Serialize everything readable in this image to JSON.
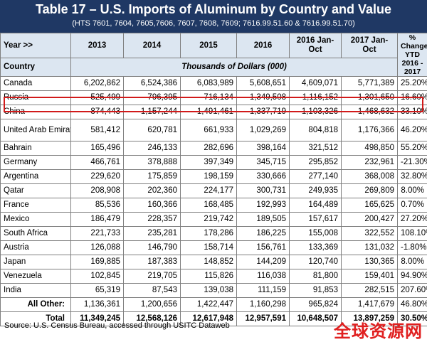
{
  "title": "Table 17 – U.S. Imports of Aluminum by Country and Value",
  "subtitle": "(HTS 7601, 7604, 7605,7606, 7607, 7608, 7609; 7616.99.51.60 & 7616.99.51.70)",
  "headers": {
    "year_label": "Year >>",
    "y2013": "2013",
    "y2014": "2014",
    "y2015": "2015",
    "y2016": "2016",
    "ytd2016": "2016 Jan-Oct",
    "ytd2017": "2017 Jan-Oct",
    "pct": "% Change YTD 2016 - 2017"
  },
  "subheader": {
    "country": "Country",
    "units": "Thousands of Dollars (000)"
  },
  "rows": [
    {
      "country": "Canada",
      "y2013": "6,202,862",
      "y2014": "6,524,386",
      "y2015": "6,083,989",
      "y2016": "5,608,651",
      "ytd2016": "4,609,071",
      "ytd2017": "5,771,389",
      "pct": "25.20%"
    },
    {
      "country": "Russia",
      "y2013": "525,499",
      "y2014": "796,395",
      "y2015": "716,134",
      "y2016": "1,349,508",
      "ytd2016": "1,116,152",
      "ytd2017": "1,301,650",
      "pct": "16.60%"
    },
    {
      "country": "China",
      "y2013": "874,443",
      "y2014": "1,157,244",
      "y2015": "1,491,461",
      "y2016": "1,337,719",
      "ytd2016": "1,103,326",
      "ytd2017": "1,468,632",
      "pct": "33.10%"
    },
    {
      "country": "United Arab Emirates",
      "y2013": "581,412",
      "y2014": "620,781",
      "y2015": "661,933",
      "y2016": "1,029,269",
      "ytd2016": "804,818",
      "ytd2017": "1,176,366",
      "pct": "46.20%"
    },
    {
      "country": "Bahrain",
      "y2013": "165,496",
      "y2014": "246,133",
      "y2015": "282,696",
      "y2016": "398,164",
      "ytd2016": "321,512",
      "ytd2017": "498,850",
      "pct": "55.20%"
    },
    {
      "country": "Germany",
      "y2013": "466,761",
      "y2014": "378,888",
      "y2015": "397,349",
      "y2016": "345,715",
      "ytd2016": "295,852",
      "ytd2017": "232,961",
      "pct": "-21.30%"
    },
    {
      "country": "Argentina",
      "y2013": "229,620",
      "y2014": "175,859",
      "y2015": "198,159",
      "y2016": "330,666",
      "ytd2016": "277,140",
      "ytd2017": "368,008",
      "pct": "32.80%"
    },
    {
      "country": "Qatar",
      "y2013": "208,908",
      "y2014": "202,360",
      "y2015": "224,177",
      "y2016": "300,731",
      "ytd2016": "249,935",
      "ytd2017": "269,809",
      "pct": "8.00%"
    },
    {
      "country": "France",
      "y2013": "85,536",
      "y2014": "160,366",
      "y2015": "168,485",
      "y2016": "192,993",
      "ytd2016": "164,489",
      "ytd2017": "165,625",
      "pct": "0.70%"
    },
    {
      "country": "Mexico",
      "y2013": "186,479",
      "y2014": "228,357",
      "y2015": "219,742",
      "y2016": "189,505",
      "ytd2016": "157,617",
      "ytd2017": "200,427",
      "pct": "27.20%"
    },
    {
      "country": "South Africa",
      "y2013": "221,733",
      "y2014": "235,281",
      "y2015": "178,286",
      "y2016": "186,225",
      "ytd2016": "155,008",
      "ytd2017": "322,552",
      "pct": "108.10%"
    },
    {
      "country": "Austria",
      "y2013": "126,088",
      "y2014": "146,790",
      "y2015": "158,714",
      "y2016": "156,761",
      "ytd2016": "133,369",
      "ytd2017": "131,032",
      "pct": "-1.80%"
    },
    {
      "country": "Japan",
      "y2013": "169,885",
      "y2014": "187,383",
      "y2015": "148,852",
      "y2016": "144,209",
      "ytd2016": "120,740",
      "ytd2017": "130,365",
      "pct": "8.00%"
    },
    {
      "country": "Venezuela",
      "y2013": "102,845",
      "y2014": "219,705",
      "y2015": "115,826",
      "y2016": "116,038",
      "ytd2016": "81,800",
      "ytd2017": "159,401",
      "pct": "94.90%"
    },
    {
      "country": "India",
      "y2013": "65,319",
      "y2014": "87,543",
      "y2015": "139,038",
      "y2016": "111,159",
      "ytd2016": "91,853",
      "ytd2017": "282,515",
      "pct": "207.60%"
    },
    {
      "country": "All Other:",
      "y2013": "1,136,361",
      "y2014": "1,200,656",
      "y2015": "1,422,447",
      "y2016": "1,160,298",
      "ytd2016": "965,824",
      "ytd2017": "1,417,679",
      "pct": "46.80%"
    },
    {
      "country": "Total",
      "y2013": "11,349,245",
      "y2014": "12,568,126",
      "y2015": "12,617,948",
      "y2016": "12,957,591",
      "ytd2016": "10,648,507",
      "ytd2017": "13,897,259",
      "pct": "30.50%"
    }
  ],
  "source": "Source: U.S. Census Bureau, accessed through USITC Dataweb",
  "watermark": "全球资源网",
  "colors": {
    "title_bg": "#1f3864",
    "header_bg": "#dce6f1",
    "highlight_border": "#d11a1a",
    "watermark": "#e02020"
  }
}
